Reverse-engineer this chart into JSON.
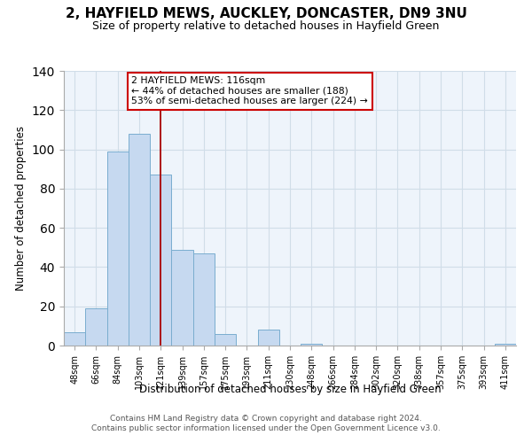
{
  "title": "2, HAYFIELD MEWS, AUCKLEY, DONCASTER, DN9 3NU",
  "subtitle": "Size of property relative to detached houses in Hayfield Green",
  "xlabel": "Distribution of detached houses by size in Hayfield Green",
  "ylabel": "Number of detached properties",
  "bar_labels": [
    "48sqm",
    "66sqm",
    "84sqm",
    "103sqm",
    "121sqm",
    "139sqm",
    "157sqm",
    "175sqm",
    "193sqm",
    "211sqm",
    "230sqm",
    "248sqm",
    "266sqm",
    "284sqm",
    "302sqm",
    "320sqm",
    "338sqm",
    "357sqm",
    "375sqm",
    "393sqm",
    "411sqm"
  ],
  "bar_values": [
    7,
    19,
    99,
    108,
    87,
    49,
    47,
    6,
    0,
    8,
    0,
    1,
    0,
    0,
    0,
    0,
    0,
    0,
    0,
    0,
    1
  ],
  "bar_color": "#c6d9f0",
  "bar_edge_color": "#7aadcf",
  "vline_x_index": 4,
  "vline_color": "#aa0000",
  "ylim": [
    0,
    140
  ],
  "yticks": [
    0,
    20,
    40,
    60,
    80,
    100,
    120,
    140
  ],
  "annotation_title": "2 HAYFIELD MEWS: 116sqm",
  "annotation_line1": "← 44% of detached houses are smaller (188)",
  "annotation_line2": "53% of semi-detached houses are larger (224) →",
  "annotation_box_color": "#ffffff",
  "annotation_box_edge": "#cc0000",
  "footer1": "Contains HM Land Registry data © Crown copyright and database right 2024.",
  "footer2": "Contains public sector information licensed under the Open Government Licence v3.0.",
  "title_fontsize": 11,
  "subtitle_fontsize": 9,
  "footer_fontsize": 6.5,
  "grid_color": "#d0dde8",
  "bg_color": "#eef4fb"
}
